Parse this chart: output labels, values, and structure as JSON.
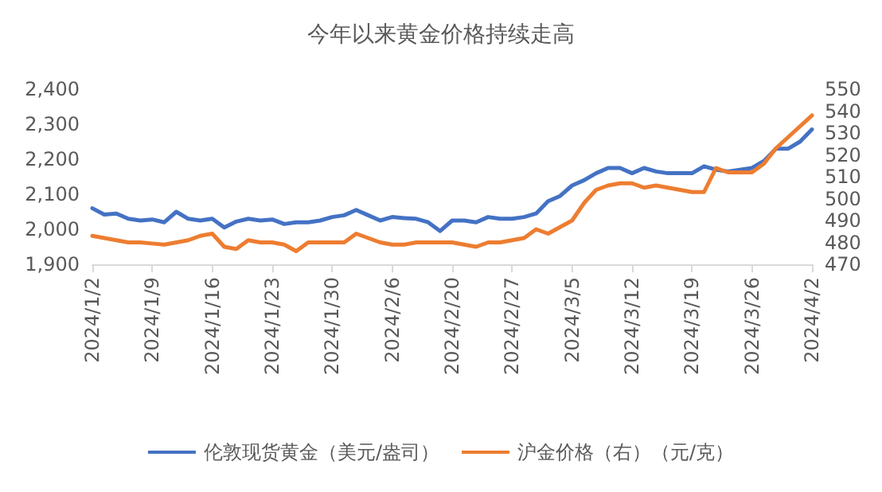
{
  "chart_data": {
    "type": "line",
    "title": "今年以来黄金价格持续走高",
    "categories": [
      "2024/1/2",
      null,
      null,
      null,
      null,
      "2024/1/9",
      null,
      null,
      null,
      null,
      "2024/1/16",
      null,
      null,
      null,
      null,
      "2024/1/23",
      null,
      null,
      null,
      null,
      "2024/1/30",
      null,
      null,
      null,
      null,
      "2024/2/6",
      null,
      null,
      null,
      null,
      "2024/2/20",
      null,
      null,
      null,
      null,
      "2024/2/27",
      null,
      null,
      null,
      null,
      "2024/3/5",
      null,
      null,
      null,
      null,
      "2024/3/12",
      null,
      null,
      null,
      null,
      "2024/3/19",
      null,
      null,
      null,
      null,
      "2024/3/26",
      null,
      null,
      null,
      null,
      "2024/4/2"
    ],
    "series": [
      {
        "name": "伦敦现货黄金（美元/盎司）",
        "color": "#4472c4",
        "values": [
          2060,
          2042,
          2045,
          2030,
          2025,
          2028,
          2020,
          2050,
          2030,
          2025,
          2030,
          2005,
          2022,
          2030,
          2025,
          2028,
          2015,
          2020,
          2020,
          2025,
          2035,
          2040,
          2055,
          2040,
          2025,
          2035,
          2032,
          2030,
          2020,
          1995,
          2025,
          2025,
          2020,
          2035,
          2030,
          2030,
          2035,
          2045,
          2080,
          2095,
          2125,
          2140,
          2160,
          2175,
          2175,
          2160,
          2175,
          2165,
          2160,
          2160,
          2160,
          2180,
          2170,
          2165,
          2170,
          2175,
          2195,
          2230,
          2230,
          2250,
          2285
        ]
      },
      {
        "name": "沪金价格（右）（元/克）",
        "color": "#ed7d31",
        "axis": "y2",
        "values": [
          483,
          482,
          481,
          480,
          480,
          479.5,
          479,
          480,
          481,
          483,
          484,
          478,
          477,
          481,
          480,
          480,
          479,
          476,
          480,
          480,
          480,
          480,
          484,
          482,
          480,
          479,
          479,
          480,
          480,
          480,
          480,
          479,
          478,
          480,
          480,
          481,
          482,
          486,
          484,
          487,
          490,
          498,
          504,
          506,
          507,
          507,
          505,
          506,
          505,
          504,
          503,
          503,
          514,
          512,
          512,
          512,
          516,
          523,
          528,
          533,
          538
        ]
      }
    ],
    "ylim": [
      1900,
      2400
    ],
    "yticks": [
      {
        "value": 1900,
        "label": "1,900"
      },
      {
        "value": 2000,
        "label": "2,000"
      },
      {
        "value": 2100,
        "label": "2,100"
      },
      {
        "value": 2200,
        "label": "2,200"
      },
      {
        "value": 2300,
        "label": "2,300"
      },
      {
        "value": 2400,
        "label": "2,400"
      }
    ],
    "y2lim": [
      470,
      550
    ],
    "y2ticks": [
      470,
      480,
      490,
      500,
      510,
      520,
      530,
      540,
      550
    ],
    "grid": false,
    "legend": "bottom",
    "marker": "none",
    "line_style": "solid"
  }
}
